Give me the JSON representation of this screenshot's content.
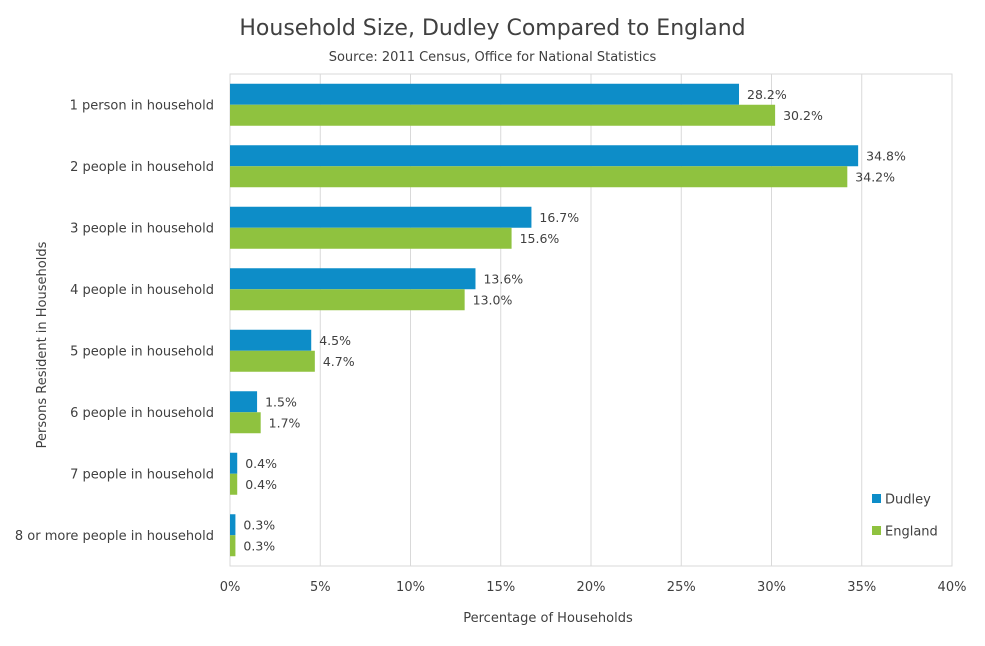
{
  "chart_data": {
    "type": "bar",
    "orientation": "horizontal",
    "title": "Household Size, Dudley Compared to England",
    "subtitle": "Source: 2011 Census, Office for National Statistics",
    "xlabel": "Percentage of Households",
    "ylabel": "Persons Resident in Households",
    "xlim": [
      0,
      40
    ],
    "x_ticks": [
      "0%",
      "5%",
      "10%",
      "15%",
      "20%",
      "25%",
      "30%",
      "35%",
      "40%"
    ],
    "x_tick_values": [
      0,
      5,
      10,
      15,
      20,
      25,
      30,
      35,
      40
    ],
    "grid": "vertical",
    "legend_position": "bottom-right",
    "categories": [
      "1 person in household",
      "2 people in household",
      "3 people in household",
      "4 people in household",
      "5 people in household",
      "6 people in household",
      "7 people in household",
      "8 or more people in household"
    ],
    "series": [
      {
        "name": "Dudley",
        "color": "#0d8dc8",
        "values": [
          28.2,
          34.8,
          16.7,
          13.6,
          4.5,
          1.5,
          0.4,
          0.3
        ],
        "labels": [
          "28.2%",
          "34.8%",
          "16.7%",
          "13.6%",
          "4.5%",
          "1.5%",
          "0.4%",
          "0.3%"
        ]
      },
      {
        "name": "England",
        "color": "#8fc23f",
        "values": [
          30.2,
          34.2,
          15.6,
          13.0,
          4.7,
          1.7,
          0.4,
          0.3
        ],
        "labels": [
          "30.2%",
          "34.2%",
          "15.6%",
          "13.0%",
          "4.7%",
          "1.7%",
          "0.4%",
          "0.3%"
        ]
      }
    ]
  }
}
